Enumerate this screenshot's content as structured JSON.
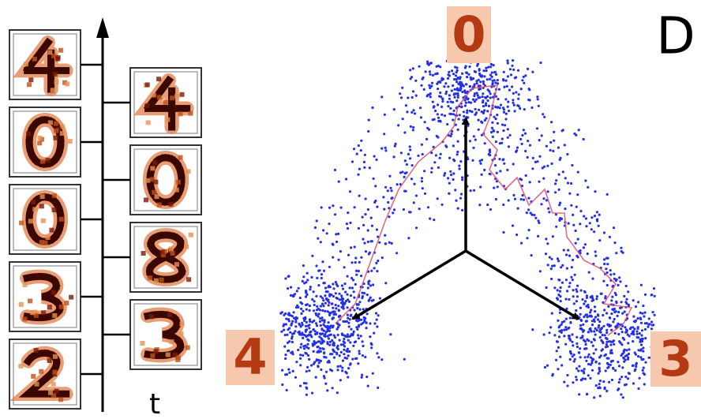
{
  "panel_label": "D",
  "time_axis_label": "t",
  "cluster_labels": [
    "0",
    "4",
    "3"
  ]
}
